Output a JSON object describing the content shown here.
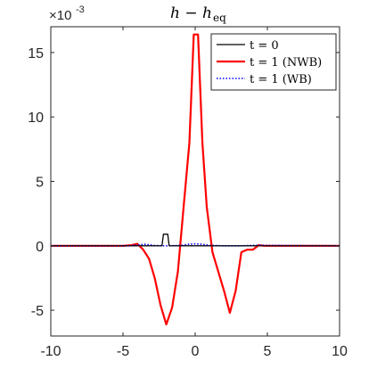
{
  "chart_data": {
    "type": "line",
    "title": "h − h",
    "title_subscript": "eq",
    "y_exponent_label": "×10",
    "y_exponent_power": "-3",
    "xlim": [
      -10,
      10
    ],
    "ylim": [
      -7,
      17
    ],
    "x_ticks": [
      -10,
      -5,
      0,
      5,
      10
    ],
    "x_tick_labels": [
      "-10",
      "-5",
      "0",
      "5",
      "10"
    ],
    "y_ticks": [
      -5,
      0,
      5,
      10,
      15
    ],
    "y_tick_labels": [
      "-5",
      "0",
      "5",
      "10",
      "15"
    ],
    "grid": false,
    "legend_position": "top-right",
    "series": [
      {
        "name": "t = 0",
        "color": "#000000",
        "style": "solid",
        "x": [
          -10,
          -2.6,
          -2.3,
          -2.2,
          -1.9,
          -1.8,
          -1.5,
          10
        ],
        "y": [
          0,
          0,
          0,
          0.9,
          0.9,
          0,
          0,
          0
        ]
      },
      {
        "name": "t = 1 (NWB)",
        "color": "#ff0000",
        "style": "solid",
        "x": [
          -10,
          -5,
          -4.4,
          -4.0,
          -3.6,
          -3.2,
          -2.8,
          -2.4,
          -2.0,
          -1.6,
          -1.2,
          -0.8,
          -0.4,
          -0.1,
          0.2,
          0.5,
          0.8,
          1.2,
          1.6,
          2.0,
          2.4,
          2.8,
          3.2,
          3.6,
          4.0,
          4.4,
          4.8,
          5.2,
          10
        ],
        "y": [
          0,
          0,
          0.05,
          0.15,
          -0.3,
          -1.0,
          -2.5,
          -4.6,
          -6.1,
          -4.8,
          -2.0,
          3.0,
          8.0,
          16.4,
          16.4,
          8.0,
          3.0,
          -0.5,
          -2.0,
          -3.5,
          -5.2,
          -3.5,
          -0.5,
          -0.3,
          -0.3,
          0.05,
          0.0,
          0,
          0
        ]
      },
      {
        "name": "t = 1 (WB)",
        "color": "#0000ff",
        "style": "dotted",
        "x": [
          -10,
          -4.5,
          -3.8,
          -3.5,
          -3.2,
          -2.8,
          -2.0,
          -1.0,
          -0.5,
          0.0,
          0.5,
          1.0,
          2.0,
          3.0,
          4.0,
          4.5,
          5.0,
          10
        ],
        "y": [
          0,
          0,
          0.08,
          0.12,
          0.08,
          0.02,
          0,
          0.03,
          0.12,
          0.15,
          0.12,
          0.03,
          0,
          0,
          0.03,
          0.05,
          0.03,
          0
        ]
      }
    ]
  }
}
